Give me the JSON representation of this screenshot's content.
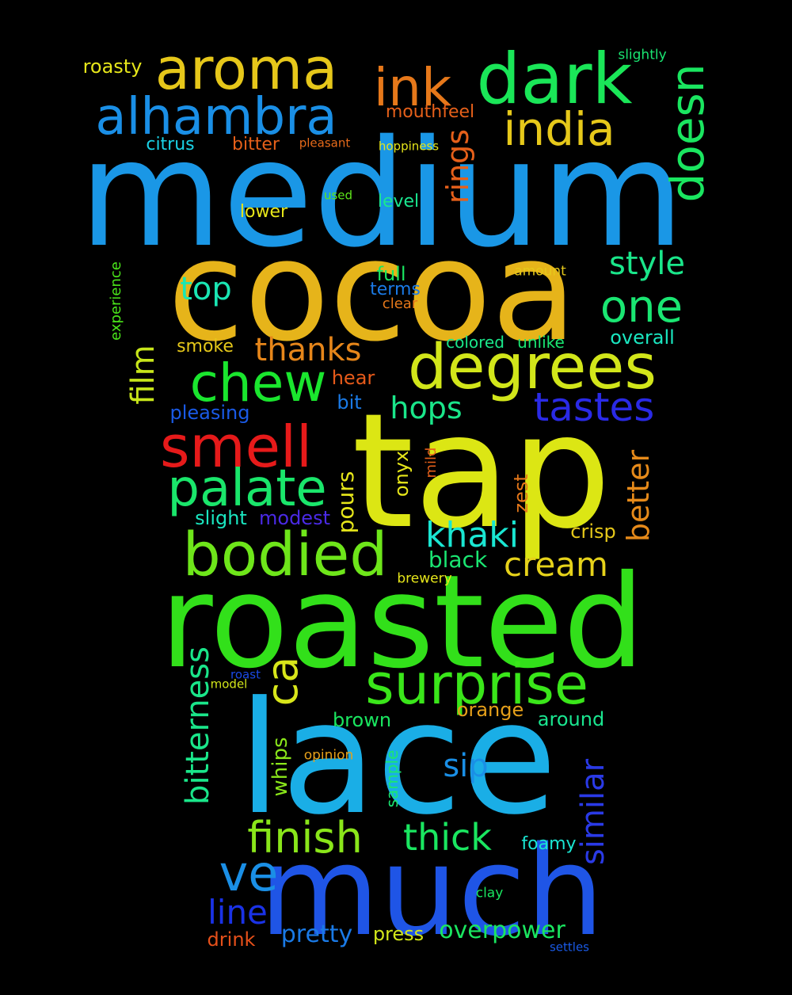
{
  "words": [
    {
      "text": "medium",
      "color": "#1a97e6"
    },
    {
      "text": "cocoa",
      "color": "#e6b41a"
    },
    {
      "text": "tap",
      "color": "#dce614"
    },
    {
      "text": "roasted",
      "color": "#32e01a"
    },
    {
      "text": "lace",
      "color": "#1aaee6"
    },
    {
      "text": "much",
      "color": "#1f55e6"
    },
    {
      "text": "aroma",
      "color": "#e6c71a"
    },
    {
      "text": "dark",
      "color": "#1ae658"
    },
    {
      "text": "alhambra",
      "color": "#1a8fe6"
    },
    {
      "text": "ink",
      "color": "#e6781a"
    },
    {
      "text": "india",
      "color": "#e6c81a"
    },
    {
      "text": "doesn",
      "color": "#1ae660"
    },
    {
      "text": "degrees",
      "color": "#d2e61a"
    },
    {
      "text": "chew",
      "color": "#1ae62e"
    },
    {
      "text": "smell",
      "color": "#e61a1a"
    },
    {
      "text": "palate",
      "color": "#1ae66b"
    },
    {
      "text": "bodied",
      "color": "#6ee61a"
    },
    {
      "text": "surprise",
      "color": "#3ae61a"
    },
    {
      "text": "one",
      "color": "#1ae672"
    },
    {
      "text": "style",
      "color": "#1ae68a"
    },
    {
      "text": "tastes",
      "color": "#2a2ae6"
    },
    {
      "text": "thanks",
      "color": "#e6861a"
    },
    {
      "text": "top",
      "color": "#1ae6b4"
    },
    {
      "text": "rings",
      "color": "#e6601a"
    },
    {
      "text": "hops",
      "color": "#1ae68a"
    },
    {
      "text": "better",
      "color": "#e68a1a"
    },
    {
      "text": "khaki",
      "color": "#1ae6d2"
    },
    {
      "text": "cream",
      "color": "#e6d21a"
    },
    {
      "text": "film",
      "color": "#c8e61a"
    },
    {
      "text": "ca",
      "color": "#d8e61a"
    },
    {
      "text": "bitterness",
      "color": "#1ae68a"
    },
    {
      "text": "finish",
      "color": "#8ae61a"
    },
    {
      "text": "thick",
      "color": "#1ae660"
    },
    {
      "text": "ve",
      "color": "#1a8fe6"
    },
    {
      "text": "sip",
      "color": "#1a8fe6"
    },
    {
      "text": "similar",
      "color": "#2a3ae6"
    },
    {
      "text": "line",
      "color": "#1a32e6"
    },
    {
      "text": "pretty",
      "color": "#1a7ae6"
    },
    {
      "text": "overpower",
      "color": "#1ae660"
    },
    {
      "text": "roasty",
      "color": "#e6e61a"
    },
    {
      "text": "slightly",
      "color": "#1ae672"
    },
    {
      "text": "mouthfeel",
      "color": "#e6601a"
    },
    {
      "text": "citrus",
      "color": "#1ad2e6"
    },
    {
      "text": "bitter",
      "color": "#e6601a"
    },
    {
      "text": "pleasant",
      "color": "#e66a1a"
    },
    {
      "text": "hoppiness",
      "color": "#e6e61a"
    },
    {
      "text": "used",
      "color": "#5ee61a"
    },
    {
      "text": "level",
      "color": "#1ae690"
    },
    {
      "text": "lower",
      "color": "#e6e61a"
    },
    {
      "text": "experience",
      "color": "#4ae61a"
    },
    {
      "text": "full",
      "color": "#1ae660"
    },
    {
      "text": "terms",
      "color": "#1a7ae6"
    },
    {
      "text": "clear",
      "color": "#e6781a"
    },
    {
      "text": "amount",
      "color": "#e6c81a"
    },
    {
      "text": "smoke",
      "color": "#e6c81a"
    },
    {
      "text": "colored",
      "color": "#1ae68a"
    },
    {
      "text": "unlike",
      "color": "#1ae672"
    },
    {
      "text": "overall",
      "color": "#1ae6c0"
    },
    {
      "text": "hear",
      "color": "#e65a1a"
    },
    {
      "text": "bit",
      "color": "#1a7ae6"
    },
    {
      "text": "pleasing",
      "color": "#1a5ae6"
    },
    {
      "text": "pours",
      "color": "#e6e61a"
    },
    {
      "text": "onyx",
      "color": "#e6e61a"
    },
    {
      "text": "mild",
      "color": "#e6601a"
    },
    {
      "text": "zest",
      "color": "#e6781a"
    },
    {
      "text": "slight",
      "color": "#1ae6c0"
    },
    {
      "text": "modest",
      "color": "#4a2ae6"
    },
    {
      "text": "crisp",
      "color": "#e6c81a"
    },
    {
      "text": "black",
      "color": "#1ae672"
    },
    {
      "text": "brewery",
      "color": "#e6e61a"
    },
    {
      "text": "roast",
      "color": "#1a4ae6"
    },
    {
      "text": "model",
      "color": "#d2e61a"
    },
    {
      "text": "orange",
      "color": "#e6a01a"
    },
    {
      "text": "brown",
      "color": "#1ae660"
    },
    {
      "text": "around",
      "color": "#1ae690"
    },
    {
      "text": "whips",
      "color": "#8ae61a"
    },
    {
      "text": "opinion",
      "color": "#e6a01a"
    },
    {
      "text": "sample",
      "color": "#1ae672"
    },
    {
      "text": "foamy",
      "color": "#1ae6d2"
    },
    {
      "text": "clay",
      "color": "#1ae660"
    },
    {
      "text": "press",
      "color": "#d2e61a"
    },
    {
      "text": "drink",
      "color": "#e6501a"
    },
    {
      "text": "settles",
      "color": "#1a5ae6"
    }
  ]
}
